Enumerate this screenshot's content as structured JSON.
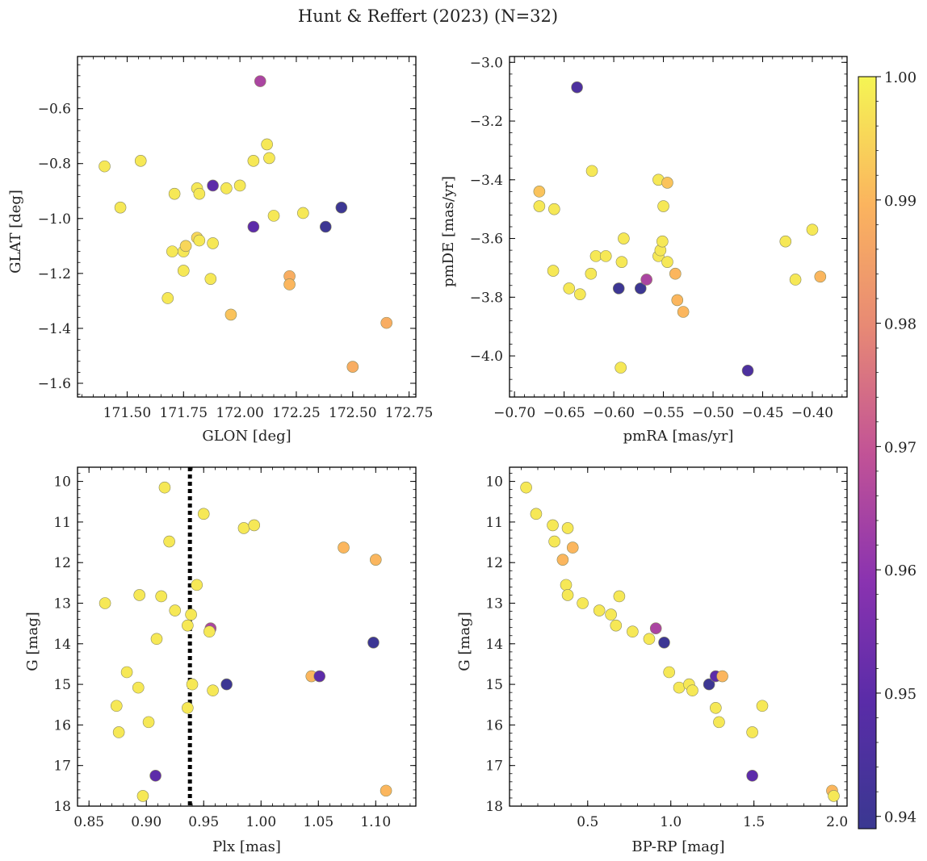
{
  "figure_title": "Hunt & Reffert (2023) (N=32)",
  "colorbar": {
    "colormap": "plasma",
    "vmin": 0.939,
    "vmax": 1.0,
    "ticks": [
      0.94,
      0.95,
      0.96,
      0.97,
      0.98,
      0.99,
      1.0
    ],
    "tick_labels": [
      "0.94",
      "0.95",
      "0.96",
      "0.97",
      "0.98",
      "0.99",
      "1.00"
    ]
  },
  "chart_data": [
    {
      "type": "scatter",
      "id": "glon-glat",
      "xlabel": "GLON [deg]",
      "ylabel": "GLAT [deg]",
      "xlim": [
        171.28,
        172.78
      ],
      "ylim": [
        -1.65,
        -0.41
      ],
      "yinvert": false,
      "xticks": [
        171.5,
        171.75,
        172.0,
        172.25,
        172.5,
        172.75
      ],
      "xtick_labels": [
        "171.50",
        "171.75",
        "172.00",
        "172.25",
        "172.50",
        "172.75"
      ],
      "yticks": [
        -0.6,
        -0.8,
        -1.0,
        -1.2,
        -1.4,
        -1.6
      ],
      "ytick_labels": [
        "−0.6",
        "−0.8",
        "−1.0",
        "−1.2",
        "−1.4",
        "−1.6"
      ],
      "points": [
        {
          "x": 171.4,
          "y": -0.81,
          "c": 0.998
        },
        {
          "x": 171.47,
          "y": -0.96,
          "c": 0.998
        },
        {
          "x": 171.56,
          "y": -0.79,
          "c": 0.998
        },
        {
          "x": 171.68,
          "y": -1.29,
          "c": 0.998
        },
        {
          "x": 171.7,
          "y": -1.12,
          "c": 0.998
        },
        {
          "x": 171.71,
          "y": -0.91,
          "c": 0.998
        },
        {
          "x": 171.75,
          "y": -1.12,
          "c": 0.998
        },
        {
          "x": 171.75,
          "y": -1.19,
          "c": 0.998
        },
        {
          "x": 171.76,
          "y": -1.1,
          "c": 0.995
        },
        {
          "x": 171.81,
          "y": -0.89,
          "c": 0.998
        },
        {
          "x": 171.81,
          "y": -1.07,
          "c": 0.995
        },
        {
          "x": 171.82,
          "y": -0.91,
          "c": 0.998
        },
        {
          "x": 171.82,
          "y": -1.08,
          "c": 0.998
        },
        {
          "x": 171.87,
          "y": -1.22,
          "c": 0.998
        },
        {
          "x": 171.88,
          "y": -0.88,
          "c": 0.95
        },
        {
          "x": 171.88,
          "y": -1.09,
          "c": 0.998
        },
        {
          "x": 171.94,
          "y": -0.89,
          "c": 0.998
        },
        {
          "x": 171.96,
          "y": -1.35,
          "c": 0.992
        },
        {
          "x": 172.0,
          "y": -0.88,
          "c": 0.998
        },
        {
          "x": 172.06,
          "y": -0.79,
          "c": 0.998
        },
        {
          "x": 172.06,
          "y": -1.03,
          "c": 0.95
        },
        {
          "x": 172.09,
          "y": -0.5,
          "c": 0.965
        },
        {
          "x": 172.12,
          "y": -0.73,
          "c": 0.998
        },
        {
          "x": 172.13,
          "y": -0.78,
          "c": 0.998
        },
        {
          "x": 172.15,
          "y": -0.99,
          "c": 0.998
        },
        {
          "x": 172.22,
          "y": -1.21,
          "c": 0.988
        },
        {
          "x": 172.22,
          "y": -1.24,
          "c": 0.99
        },
        {
          "x": 172.28,
          "y": -0.98,
          "c": 0.998
        },
        {
          "x": 172.38,
          "y": -1.03,
          "c": 0.94
        },
        {
          "x": 172.45,
          "y": -0.96,
          "c": 0.94
        },
        {
          "x": 172.5,
          "y": -1.54,
          "c": 0.988
        },
        {
          "x": 172.65,
          "y": -1.38,
          "c": 0.988
        }
      ]
    },
    {
      "type": "scatter",
      "id": "pmra-pmde",
      "xlabel": "pmRA [mas/yr]",
      "ylabel": "pmDE [mas/yr]",
      "xlim": [
        -0.705,
        -0.365
      ],
      "ylim": [
        -4.14,
        -2.98
      ],
      "yinvert": false,
      "xticks": [
        -0.7,
        -0.65,
        -0.6,
        -0.55,
        -0.5,
        -0.45,
        -0.4
      ],
      "xtick_labels": [
        "−0.70",
        "−0.65",
        "−0.60",
        "−0.55",
        "−0.50",
        "−0.45",
        "−0.40"
      ],
      "yticks": [
        -3.0,
        -3.2,
        -3.4,
        -3.6,
        -3.8,
        -4.0
      ],
      "ytick_labels": [
        "−3.0",
        "−3.2",
        "−3.4",
        "−3.6",
        "−3.8",
        "−4.0"
      ],
      "points": [
        {
          "x": -0.637,
          "y": -3.085,
          "c": 0.945
        },
        {
          "x": -0.675,
          "y": -3.44,
          "c": 0.992
        },
        {
          "x": -0.675,
          "y": -3.49,
          "c": 0.998
        },
        {
          "x": -0.66,
          "y": -3.5,
          "c": 0.998
        },
        {
          "x": -0.622,
          "y": -3.37,
          "c": 0.998
        },
        {
          "x": -0.661,
          "y": -3.71,
          "c": 0.998
        },
        {
          "x": -0.645,
          "y": -3.77,
          "c": 0.998
        },
        {
          "x": -0.634,
          "y": -3.79,
          "c": 0.998
        },
        {
          "x": -0.623,
          "y": -3.72,
          "c": 0.998
        },
        {
          "x": -0.618,
          "y": -3.66,
          "c": 0.998
        },
        {
          "x": -0.608,
          "y": -3.66,
          "c": 0.998
        },
        {
          "x": -0.595,
          "y": -3.77,
          "c": 0.94
        },
        {
          "x": -0.592,
          "y": -3.68,
          "c": 0.998
        },
        {
          "x": -0.59,
          "y": -3.6,
          "c": 0.998
        },
        {
          "x": -0.593,
          "y": -4.04,
          "c": 0.998
        },
        {
          "x": -0.573,
          "y": -3.77,
          "c": 0.94
        },
        {
          "x": -0.567,
          "y": -3.74,
          "c": 0.965
        },
        {
          "x": -0.555,
          "y": -3.66,
          "c": 0.998
        },
        {
          "x": -0.553,
          "y": -3.64,
          "c": 0.998
        },
        {
          "x": -0.551,
          "y": -3.61,
          "c": 0.998
        },
        {
          "x": -0.55,
          "y": -3.49,
          "c": 0.998
        },
        {
          "x": -0.555,
          "y": -3.4,
          "c": 0.998
        },
        {
          "x": -0.546,
          "y": -3.68,
          "c": 0.998
        },
        {
          "x": -0.546,
          "y": -3.41,
          "c": 0.992
        },
        {
          "x": -0.538,
          "y": -3.72,
          "c": 0.99
        },
        {
          "x": -0.536,
          "y": -3.81,
          "c": 0.99
        },
        {
          "x": -0.53,
          "y": -3.85,
          "c": 0.99
        },
        {
          "x": -0.465,
          "y": -4.05,
          "c": 0.945
        },
        {
          "x": -0.427,
          "y": -3.61,
          "c": 0.998
        },
        {
          "x": -0.417,
          "y": -3.74,
          "c": 0.998
        },
        {
          "x": -0.4,
          "y": -3.57,
          "c": 0.998
        },
        {
          "x": -0.392,
          "y": -3.73,
          "c": 0.99
        }
      ]
    },
    {
      "type": "scatter",
      "id": "plx-g",
      "xlabel": "Plx [mas]",
      "ylabel": "G [mag]",
      "xlim": [
        0.84,
        1.135
      ],
      "ylim": [
        9.65,
        18.0
      ],
      "yinvert": true,
      "xticks": [
        0.85,
        0.9,
        0.95,
        1.0,
        1.05,
        1.1
      ],
      "xtick_labels": [
        "0.85",
        "0.90",
        "0.95",
        "1.00",
        "1.05",
        "1.10"
      ],
      "yticks": [
        10,
        11,
        12,
        13,
        14,
        15,
        16,
        17,
        18
      ],
      "ytick_labels": [
        "10",
        "11",
        "12",
        "13",
        "14",
        "15",
        "16",
        "17",
        "18"
      ],
      "vline": 0.938,
      "points": [
        {
          "x": 0.916,
          "y": 10.15,
          "c": 0.998
        },
        {
          "x": 0.95,
          "y": 10.8,
          "c": 0.998
        },
        {
          "x": 0.985,
          "y": 11.15,
          "c": 0.998
        },
        {
          "x": 0.994,
          "y": 11.08,
          "c": 0.998
        },
        {
          "x": 0.92,
          "y": 11.48,
          "c": 0.998
        },
        {
          "x": 1.072,
          "y": 11.63,
          "c": 0.99
        },
        {
          "x": 1.1,
          "y": 11.93,
          "c": 0.99
        },
        {
          "x": 0.944,
          "y": 12.55,
          "c": 0.998
        },
        {
          "x": 0.864,
          "y": 13.0,
          "c": 0.998
        },
        {
          "x": 0.894,
          "y": 12.8,
          "c": 0.998
        },
        {
          "x": 0.913,
          "y": 12.83,
          "c": 0.998
        },
        {
          "x": 0.925,
          "y": 13.18,
          "c": 0.998
        },
        {
          "x": 0.939,
          "y": 13.28,
          "c": 0.998
        },
        {
          "x": 0.936,
          "y": 13.55,
          "c": 0.998
        },
        {
          "x": 0.956,
          "y": 13.62,
          "c": 0.965
        },
        {
          "x": 0.955,
          "y": 13.7,
          "c": 0.998
        },
        {
          "x": 0.909,
          "y": 13.88,
          "c": 0.998
        },
        {
          "x": 1.098,
          "y": 13.97,
          "c": 0.94
        },
        {
          "x": 0.883,
          "y": 14.7,
          "c": 0.998
        },
        {
          "x": 1.044,
          "y": 14.8,
          "c": 0.99
        },
        {
          "x": 1.051,
          "y": 14.8,
          "c": 0.95
        },
        {
          "x": 0.94,
          "y": 15.0,
          "c": 0.998
        },
        {
          "x": 0.97,
          "y": 15.0,
          "c": 0.94
        },
        {
          "x": 0.893,
          "y": 15.08,
          "c": 0.998
        },
        {
          "x": 0.958,
          "y": 15.15,
          "c": 0.998
        },
        {
          "x": 0.874,
          "y": 15.53,
          "c": 0.998
        },
        {
          "x": 0.936,
          "y": 15.58,
          "c": 0.998
        },
        {
          "x": 0.902,
          "y": 15.93,
          "c": 0.998
        },
        {
          "x": 0.876,
          "y": 16.18,
          "c": 0.998
        },
        {
          "x": 0.908,
          "y": 17.25,
          "c": 0.95
        },
        {
          "x": 1.109,
          "y": 17.62,
          "c": 0.99
        },
        {
          "x": 0.897,
          "y": 17.75,
          "c": 0.998
        }
      ]
    },
    {
      "type": "scatter",
      "id": "bprp-g",
      "xlabel": "BP-RP [mag]",
      "ylabel": "G [mag]",
      "xlim": [
        0.03,
        2.06
      ],
      "ylim": [
        9.65,
        18.0
      ],
      "yinvert": true,
      "xticks": [
        0.5,
        1.0,
        1.5,
        2.0
      ],
      "xtick_labels": [
        "0.5",
        "1.0",
        "1.5",
        "2.0"
      ],
      "yticks": [
        10,
        11,
        12,
        13,
        14,
        15,
        16,
        17,
        18
      ],
      "ytick_labels": [
        "10",
        "11",
        "12",
        "13",
        "14",
        "15",
        "16",
        "17",
        "18"
      ],
      "points": [
        {
          "x": 0.13,
          "y": 10.15,
          "c": 0.998
        },
        {
          "x": 0.19,
          "y": 10.8,
          "c": 0.998
        },
        {
          "x": 0.29,
          "y": 11.08,
          "c": 0.998
        },
        {
          "x": 0.3,
          "y": 11.48,
          "c": 0.998
        },
        {
          "x": 0.38,
          "y": 11.15,
          "c": 0.998
        },
        {
          "x": 0.41,
          "y": 11.63,
          "c": 0.99
        },
        {
          "x": 0.35,
          "y": 11.93,
          "c": 0.99
        },
        {
          "x": 0.37,
          "y": 12.55,
          "c": 0.998
        },
        {
          "x": 0.38,
          "y": 12.8,
          "c": 0.998
        },
        {
          "x": 0.47,
          "y": 13.0,
          "c": 0.998
        },
        {
          "x": 0.57,
          "y": 13.18,
          "c": 0.998
        },
        {
          "x": 0.64,
          "y": 13.28,
          "c": 0.998
        },
        {
          "x": 0.69,
          "y": 12.83,
          "c": 0.998
        },
        {
          "x": 0.67,
          "y": 13.55,
          "c": 0.998
        },
        {
          "x": 0.77,
          "y": 13.7,
          "c": 0.998
        },
        {
          "x": 0.91,
          "y": 13.62,
          "c": 0.965
        },
        {
          "x": 0.87,
          "y": 13.88,
          "c": 0.998
        },
        {
          "x": 0.96,
          "y": 13.97,
          "c": 0.94
        },
        {
          "x": 0.99,
          "y": 14.7,
          "c": 0.998
        },
        {
          "x": 1.05,
          "y": 15.08,
          "c": 0.998
        },
        {
          "x": 1.11,
          "y": 15.0,
          "c": 0.998
        },
        {
          "x": 1.13,
          "y": 15.15,
          "c": 0.998
        },
        {
          "x": 1.23,
          "y": 15.0,
          "c": 0.94
        },
        {
          "x": 1.27,
          "y": 14.8,
          "c": 0.95
        },
        {
          "x": 1.31,
          "y": 14.8,
          "c": 0.99
        },
        {
          "x": 1.27,
          "y": 15.58,
          "c": 0.998
        },
        {
          "x": 1.29,
          "y": 15.93,
          "c": 0.998
        },
        {
          "x": 1.55,
          "y": 15.53,
          "c": 0.998
        },
        {
          "x": 1.49,
          "y": 16.18,
          "c": 0.998
        },
        {
          "x": 1.49,
          "y": 17.25,
          "c": 0.95
        },
        {
          "x": 1.97,
          "y": 17.62,
          "c": 0.99
        },
        {
          "x": 1.98,
          "y": 17.75,
          "c": 0.998
        }
      ]
    }
  ]
}
